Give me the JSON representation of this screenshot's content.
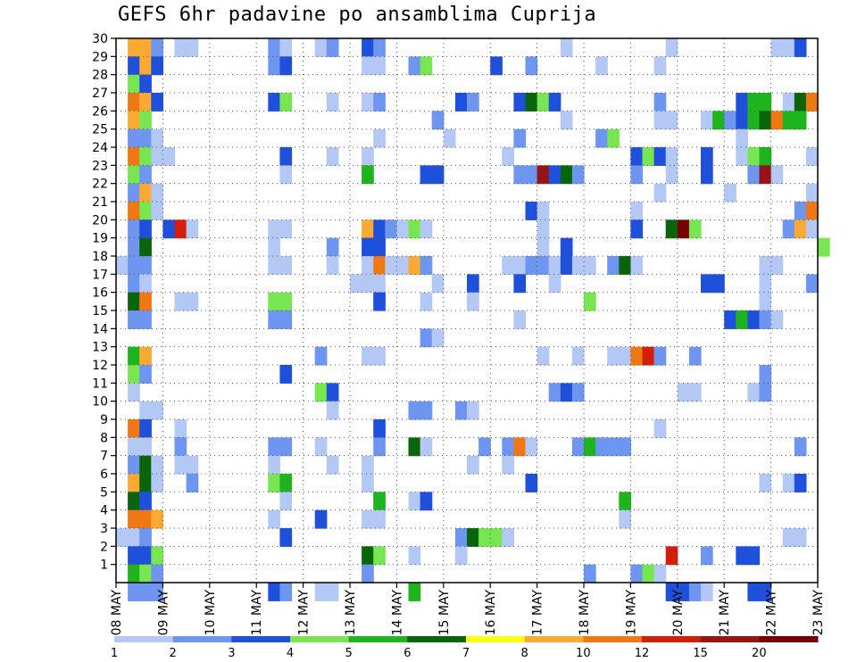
{
  "title": "GEFS 6hr padavine po ansamblima Cuprija",
  "chart_data": {
    "type": "heatmap",
    "title": "GEFS 6hr padavine po ansamblima Cuprija",
    "xlabel": "",
    "ylabel": "",
    "x_tick_labels": [
      "08 MAY",
      "09 MAY",
      "10 MAY",
      "11 MAY",
      "12 MAY",
      "13 MAY",
      "14 MAY",
      "15 MAY",
      "16 MAY",
      "17 MAY",
      "18 MAY",
      "19 MAY",
      "20 MAY",
      "21 MAY",
      "22 MAY",
      "23 MAY"
    ],
    "y_tick_labels": [
      "1",
      "2",
      "3",
      "4",
      "5",
      "6",
      "7",
      "8",
      "9",
      "10",
      "11",
      "12",
      "13",
      "14",
      "15",
      "16",
      "17",
      "18",
      "19",
      "20",
      "21",
      "22",
      "23",
      "24",
      "25",
      "26",
      "27",
      "28",
      "29",
      "30"
    ],
    "y_range": [
      0,
      30
    ],
    "time_steps": 60,
    "grid": true,
    "legend_position": "bottom",
    "color_scale": {
      "thresholds": [
        "1",
        "2",
        "3",
        "4",
        "5",
        "6",
        "7",
        "8",
        "10",
        "12",
        "15",
        "20"
      ],
      "colors": [
        "#b4c8f5",
        "#6e96f0",
        "#1e50dc",
        "#78e650",
        "#1eb41e",
        "#0a640a",
        "#ffff14",
        "#faaa32",
        "#f07814",
        "#d21e0a",
        "#961414",
        "#780000"
      ]
    },
    "cells": [
      [
        30,
        1,
        8
      ],
      [
        30,
        2,
        8
      ],
      [
        30,
        3,
        2
      ],
      [
        30,
        5,
        1
      ],
      [
        30,
        6,
        1
      ],
      [
        30,
        13,
        2
      ],
      [
        30,
        14,
        1
      ],
      [
        30,
        17,
        1
      ],
      [
        30,
        18,
        2
      ],
      [
        30,
        21,
        3
      ],
      [
        30,
        22,
        2
      ],
      [
        30,
        38,
        1
      ],
      [
        30,
        47,
        1
      ],
      [
        30,
        56,
        1
      ],
      [
        30,
        57,
        1
      ],
      [
        30,
        58,
        3
      ],
      [
        29,
        1,
        3
      ],
      [
        29,
        2,
        8
      ],
      [
        29,
        3,
        3
      ],
      [
        29,
        13,
        2
      ],
      [
        29,
        14,
        3
      ],
      [
        29,
        21,
        1
      ],
      [
        29,
        22,
        1
      ],
      [
        29,
        25,
        2
      ],
      [
        29,
        26,
        4
      ],
      [
        29,
        32,
        3
      ],
      [
        29,
        35,
        2
      ],
      [
        29,
        41,
        1
      ],
      [
        29,
        46,
        1
      ],
      [
        28,
        1,
        4
      ],
      [
        28,
        2,
        3
      ],
      [
        27,
        1,
        9
      ],
      [
        27,
        2,
        8
      ],
      [
        27,
        3,
        3
      ],
      [
        27,
        13,
        3
      ],
      [
        27,
        14,
        4
      ],
      [
        27,
        18,
        1
      ],
      [
        27,
        21,
        1
      ],
      [
        27,
        22,
        2
      ],
      [
        27,
        29,
        3
      ],
      [
        27,
        30,
        2
      ],
      [
        27,
        34,
        3
      ],
      [
        27,
        35,
        6
      ],
      [
        27,
        36,
        4
      ],
      [
        27,
        37,
        3
      ],
      [
        27,
        46,
        2
      ],
      [
        27,
        53,
        3
      ],
      [
        27,
        54,
        5
      ],
      [
        27,
        55,
        5
      ],
      [
        27,
        57,
        1
      ],
      [
        27,
        58,
        6
      ],
      [
        27,
        59,
        9
      ],
      [
        26,
        1,
        8
      ],
      [
        26,
        2,
        4
      ],
      [
        26,
        27,
        2
      ],
      [
        26,
        38,
        1
      ],
      [
        26,
        46,
        1
      ],
      [
        26,
        47,
        1
      ],
      [
        26,
        50,
        1
      ],
      [
        26,
        51,
        5
      ],
      [
        26,
        52,
        2
      ],
      [
        26,
        53,
        3
      ],
      [
        26,
        54,
        5
      ],
      [
        26,
        55,
        6
      ],
      [
        26,
        56,
        9
      ],
      [
        26,
        57,
        5
      ],
      [
        26,
        58,
        5
      ],
      [
        25,
        1,
        2
      ],
      [
        25,
        2,
        2
      ],
      [
        25,
        3,
        1
      ],
      [
        25,
        22,
        1
      ],
      [
        25,
        28,
        1
      ],
      [
        25,
        34,
        2
      ],
      [
        25,
        41,
        2
      ],
      [
        25,
        42,
        4
      ],
      [
        25,
        53,
        1
      ],
      [
        24,
        1,
        9
      ],
      [
        24,
        2,
        4
      ],
      [
        24,
        3,
        1
      ],
      [
        24,
        4,
        1
      ],
      [
        24,
        14,
        3
      ],
      [
        24,
        18,
        1
      ],
      [
        24,
        21,
        1
      ],
      [
        24,
        33,
        1
      ],
      [
        24,
        44,
        3
      ],
      [
        24,
        45,
        4
      ],
      [
        24,
        46,
        3
      ],
      [
        24,
        47,
        1
      ],
      [
        24,
        50,
        3
      ],
      [
        24,
        53,
        1
      ],
      [
        24,
        54,
        4
      ],
      [
        24,
        55,
        5
      ],
      [
        24,
        59,
        1
      ],
      [
        23,
        1,
        4
      ],
      [
        23,
        2,
        2
      ],
      [
        23,
        14,
        1
      ],
      [
        23,
        21,
        5
      ],
      [
        23,
        26,
        3
      ],
      [
        23,
        27,
        3
      ],
      [
        23,
        34,
        2
      ],
      [
        23,
        35,
        2
      ],
      [
        23,
        36,
        11
      ],
      [
        23,
        37,
        3
      ],
      [
        23,
        38,
        6
      ],
      [
        23,
        39,
        2
      ],
      [
        23,
        44,
        2
      ],
      [
        23,
        47,
        1
      ],
      [
        23,
        50,
        3
      ],
      [
        23,
        54,
        2
      ],
      [
        23,
        55,
        11
      ],
      [
        23,
        56,
        1
      ],
      [
        22,
        1,
        2
      ],
      [
        22,
        2,
        8
      ],
      [
        22,
        3,
        1
      ],
      [
        22,
        46,
        1
      ],
      [
        22,
        52,
        1
      ],
      [
        22,
        59,
        1
      ],
      [
        21,
        1,
        9
      ],
      [
        21,
        2,
        4
      ],
      [
        21,
        3,
        1
      ],
      [
        21,
        35,
        3
      ],
      [
        21,
        36,
        1
      ],
      [
        21,
        44,
        1
      ],
      [
        21,
        58,
        2
      ],
      [
        21,
        59,
        9
      ],
      [
        20,
        1,
        2
      ],
      [
        20,
        2,
        3
      ],
      [
        20,
        4,
        3
      ],
      [
        20,
        5,
        10
      ],
      [
        20,
        6,
        1
      ],
      [
        20,
        13,
        1
      ],
      [
        20,
        14,
        1
      ],
      [
        20,
        21,
        8
      ],
      [
        20,
        22,
        3
      ],
      [
        20,
        23,
        2
      ],
      [
        20,
        24,
        1
      ],
      [
        20,
        25,
        4
      ],
      [
        20,
        26,
        1
      ],
      [
        20,
        36,
        1
      ],
      [
        20,
        44,
        3
      ],
      [
        20,
        47,
        6
      ],
      [
        20,
        48,
        12
      ],
      [
        20,
        49,
        4
      ],
      [
        20,
        57,
        2
      ],
      [
        20,
        58,
        8
      ],
      [
        20,
        59,
        1
      ],
      [
        19,
        1,
        2
      ],
      [
        19,
        2,
        6
      ],
      [
        19,
        13,
        1
      ],
      [
        19,
        18,
        2
      ],
      [
        19,
        21,
        3
      ],
      [
        19,
        22,
        3
      ],
      [
        19,
        36,
        1
      ],
      [
        19,
        38,
        3
      ],
      [
        19,
        60,
        4
      ],
      [
        18,
        0,
        1
      ],
      [
        18,
        1,
        2
      ],
      [
        18,
        2,
        2
      ],
      [
        18,
        13,
        1
      ],
      [
        18,
        14,
        1
      ],
      [
        18,
        18,
        1
      ],
      [
        18,
        21,
        1
      ],
      [
        18,
        22,
        9
      ],
      [
        18,
        23,
        1
      ],
      [
        18,
        24,
        1
      ],
      [
        18,
        25,
        8
      ],
      [
        18,
        26,
        2
      ],
      [
        18,
        33,
        1
      ],
      [
        18,
        34,
        1
      ],
      [
        18,
        35,
        2
      ],
      [
        18,
        36,
        2
      ],
      [
        18,
        37,
        1
      ],
      [
        18,
        38,
        3
      ],
      [
        18,
        39,
        1
      ],
      [
        18,
        40,
        1
      ],
      [
        18,
        42,
        2
      ],
      [
        18,
        43,
        6
      ],
      [
        18,
        44,
        1
      ],
      [
        18,
        55,
        1
      ],
      [
        18,
        56,
        1
      ],
      [
        17,
        1,
        2
      ],
      [
        17,
        2,
        1
      ],
      [
        17,
        20,
        1
      ],
      [
        17,
        21,
        1
      ],
      [
        17,
        22,
        1
      ],
      [
        17,
        27,
        1
      ],
      [
        17,
        30,
        3
      ],
      [
        17,
        34,
        3
      ],
      [
        17,
        37,
        1
      ],
      [
        17,
        50,
        3
      ],
      [
        17,
        51,
        3
      ],
      [
        17,
        55,
        1
      ],
      [
        17,
        59,
        2
      ],
      [
        16,
        1,
        6
      ],
      [
        16,
        2,
        9
      ],
      [
        16,
        5,
        1
      ],
      [
        16,
        6,
        1
      ],
      [
        16,
        13,
        4
      ],
      [
        16,
        14,
        4
      ],
      [
        16,
        22,
        3
      ],
      [
        16,
        26,
        1
      ],
      [
        16,
        30,
        1
      ],
      [
        16,
        40,
        4
      ],
      [
        16,
        55,
        1
      ],
      [
        15,
        1,
        2
      ],
      [
        15,
        2,
        2
      ],
      [
        15,
        13,
        2
      ],
      [
        15,
        14,
        2
      ],
      [
        15,
        34,
        1
      ],
      [
        15,
        52,
        3
      ],
      [
        15,
        53,
        5
      ],
      [
        15,
        54,
        3
      ],
      [
        15,
        55,
        2
      ],
      [
        15,
        56,
        1
      ],
      [
        14,
        26,
        2
      ],
      [
        14,
        27,
        1
      ],
      [
        13,
        1,
        5
      ],
      [
        13,
        2,
        8
      ],
      [
        13,
        17,
        2
      ],
      [
        13,
        21,
        1
      ],
      [
        13,
        22,
        1
      ],
      [
        13,
        36,
        1
      ],
      [
        13,
        39,
        1
      ],
      [
        13,
        42,
        1
      ],
      [
        13,
        43,
        1
      ],
      [
        13,
        44,
        9
      ],
      [
        13,
        45,
        10
      ],
      [
        13,
        46,
        2
      ],
      [
        13,
        49,
        2
      ],
      [
        12,
        1,
        4
      ],
      [
        12,
        2,
        2
      ],
      [
        12,
        14,
        3
      ],
      [
        12,
        55,
        2
      ],
      [
        11,
        1,
        1
      ],
      [
        11,
        17,
        4
      ],
      [
        11,
        18,
        3
      ],
      [
        11,
        37,
        2
      ],
      [
        11,
        38,
        3
      ],
      [
        11,
        39,
        2
      ],
      [
        11,
        48,
        1
      ],
      [
        11,
        49,
        1
      ],
      [
        11,
        54,
        1
      ],
      [
        11,
        55,
        2
      ],
      [
        10,
        2,
        1
      ],
      [
        10,
        3,
        1
      ],
      [
        10,
        18,
        1
      ],
      [
        10,
        25,
        2
      ],
      [
        10,
        26,
        2
      ],
      [
        10,
        29,
        2
      ],
      [
        10,
        30,
        1
      ],
      [
        9,
        1,
        9
      ],
      [
        9,
        2,
        3
      ],
      [
        9,
        5,
        1
      ],
      [
        9,
        22,
        3
      ],
      [
        9,
        46,
        1
      ],
      [
        8,
        1,
        1
      ],
      [
        8,
        2,
        1
      ],
      [
        8,
        5,
        2
      ],
      [
        8,
        13,
        2
      ],
      [
        8,
        14,
        2
      ],
      [
        8,
        17,
        1
      ],
      [
        8,
        22,
        2
      ],
      [
        8,
        25,
        6
      ],
      [
        8,
        26,
        1
      ],
      [
        8,
        31,
        2
      ],
      [
        8,
        33,
        2
      ],
      [
        8,
        34,
        9
      ],
      [
        8,
        35,
        1
      ],
      [
        8,
        39,
        2
      ],
      [
        8,
        40,
        5
      ],
      [
        8,
        41,
        2
      ],
      [
        8,
        42,
        2
      ],
      [
        8,
        43,
        2
      ],
      [
        8,
        58,
        2
      ],
      [
        7,
        1,
        2
      ],
      [
        7,
        2,
        6
      ],
      [
        7,
        3,
        1
      ],
      [
        7,
        5,
        1
      ],
      [
        7,
        6,
        1
      ],
      [
        7,
        13,
        1
      ],
      [
        7,
        18,
        1
      ],
      [
        7,
        21,
        1
      ],
      [
        7,
        30,
        1
      ],
      [
        7,
        33,
        1
      ],
      [
        6,
        1,
        8
      ],
      [
        6,
        2,
        6
      ],
      [
        6,
        3,
        1
      ],
      [
        6,
        6,
        2
      ],
      [
        6,
        13,
        4
      ],
      [
        6,
        14,
        5
      ],
      [
        6,
        21,
        1
      ],
      [
        6,
        35,
        3
      ],
      [
        6,
        55,
        1
      ],
      [
        6,
        57,
        1
      ],
      [
        6,
        58,
        3
      ],
      [
        5,
        1,
        6
      ],
      [
        5,
        2,
        3
      ],
      [
        5,
        14,
        1
      ],
      [
        5,
        22,
        5
      ],
      [
        5,
        25,
        1
      ],
      [
        5,
        26,
        3
      ],
      [
        5,
        43,
        5
      ],
      [
        4,
        1,
        9
      ],
      [
        4,
        2,
        9
      ],
      [
        4,
        3,
        8
      ],
      [
        4,
        13,
        1
      ],
      [
        4,
        17,
        3
      ],
      [
        4,
        21,
        1
      ],
      [
        4,
        22,
        1
      ],
      [
        4,
        43,
        1
      ],
      [
        3,
        0,
        1
      ],
      [
        3,
        1,
        1
      ],
      [
        3,
        2,
        2
      ],
      [
        3,
        14,
        3
      ],
      [
        3,
        29,
        2
      ],
      [
        3,
        30,
        6
      ],
      [
        3,
        31,
        4
      ],
      [
        3,
        32,
        4
      ],
      [
        3,
        33,
        1
      ],
      [
        3,
        57,
        1
      ],
      [
        3,
        58,
        1
      ],
      [
        2,
        1,
        3
      ],
      [
        2,
        2,
        3
      ],
      [
        2,
        3,
        4
      ],
      [
        2,
        21,
        6
      ],
      [
        2,
        22,
        4
      ],
      [
        2,
        25,
        1
      ],
      [
        2,
        29,
        1
      ],
      [
        2,
        47,
        10
      ],
      [
        2,
        50,
        2
      ],
      [
        2,
        53,
        3
      ],
      [
        2,
        54,
        3
      ],
      [
        1,
        1,
        5
      ],
      [
        1,
        2,
        4
      ],
      [
        1,
        3,
        2
      ],
      [
        1,
        21,
        2
      ],
      [
        1,
        40,
        2
      ],
      [
        1,
        44,
        2
      ],
      [
        1,
        45,
        4
      ],
      [
        1,
        46,
        1
      ],
      [
        0,
        1,
        2
      ],
      [
        0,
        2,
        2
      ],
      [
        0,
        3,
        2
      ],
      [
        0,
        13,
        3
      ],
      [
        0,
        14,
        2
      ],
      [
        0,
        17,
        1
      ],
      [
        0,
        18,
        1
      ],
      [
        0,
        25,
        5
      ],
      [
        0,
        47,
        3
      ],
      [
        0,
        48,
        3
      ],
      [
        0,
        49,
        2
      ],
      [
        0,
        50,
        1
      ],
      [
        0,
        54,
        3
      ],
      [
        0,
        55,
        3
      ]
    ]
  }
}
